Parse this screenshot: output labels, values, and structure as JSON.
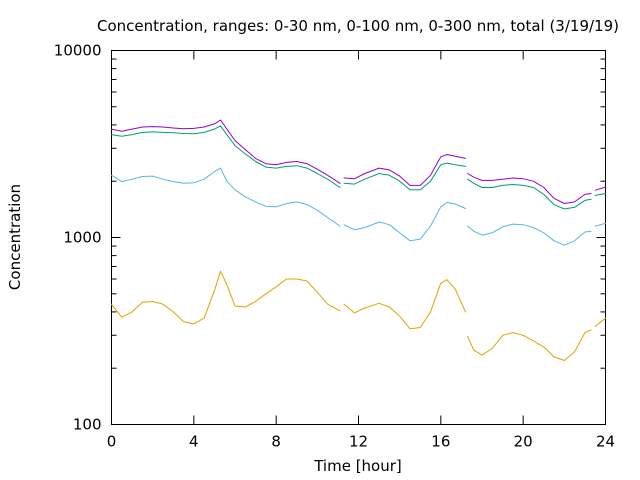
{
  "chart_data": {
    "type": "line",
    "title": "Concentration, ranges: 0-30 nm, 0-100 nm, 0-300 nm, total (3/19/19)",
    "xlabel": "Time [hour]",
    "ylabel": "Concentration",
    "xlim": [
      0,
      24
    ],
    "ylim": [
      100,
      10000
    ],
    "yscale": "log",
    "grid": false,
    "legend": "none",
    "x_ticks": [
      {
        "value": 0,
        "label": "0"
      },
      {
        "value": 4,
        "label": "4"
      },
      {
        "value": 8,
        "label": "8"
      },
      {
        "value": 12,
        "label": "12"
      },
      {
        "value": 16,
        "label": "16"
      },
      {
        "value": 20,
        "label": "20"
      },
      {
        "value": 24,
        "label": "24"
      }
    ],
    "y_ticks": [
      {
        "value": 100,
        "label": "100"
      },
      {
        "value": 1000,
        "label": "1000"
      },
      {
        "value": 10000,
        "label": "10000"
      }
    ],
    "series": [
      {
        "color": "#e69f00",
        "segments": [
          {
            "x": [
              0,
              0.5,
              1,
              1.5,
              2,
              2.5,
              3,
              3.5,
              4,
              4.5,
              5.0,
              5.3,
              5.6,
              6,
              6.5,
              7,
              7.5,
              8,
              8.5,
              9,
              9.5,
              10,
              10.5,
              11.1
            ],
            "y": [
              440,
              375,
              400,
              450,
              455,
              440,
              400,
              355,
              345,
              370,
              520,
              660,
              560,
              430,
              425,
              455,
              500,
              545,
              600,
              600,
              585,
              510,
              440,
              405
            ]
          },
          {
            "x": [
              11.3,
              11.8,
              12.3,
              13,
              13.5,
              14,
              14.5,
              15,
              15.5,
              16,
              16.3,
              16.7,
              17.2
            ],
            "y": [
              440,
              395,
              420,
              445,
              425,
              380,
              325,
              330,
              400,
              570,
              595,
              530,
              400
            ]
          },
          {
            "x": [
              17.3,
              17.6,
              18,
              18.5,
              19,
              19.5,
              20,
              20.5,
              21,
              21.5,
              22,
              22.5,
              23,
              23.3
            ],
            "y": [
              295,
              250,
              235,
              255,
              300,
              310,
              300,
              280,
              260,
              230,
              220,
              245,
              310,
              320
            ]
          },
          {
            "x": [
              23.5,
              24
            ],
            "y": [
              335,
              370
            ]
          }
        ]
      },
      {
        "color": "#56b4e9",
        "segments": [
          {
            "x": [
              0,
              0.5,
              1,
              1.5,
              2,
              2.5,
              3,
              3.5,
              4,
              4.5,
              5.0,
              5.3,
              5.6,
              6,
              6.5,
              7,
              7.5,
              8,
              8.5,
              9,
              9.5,
              10,
              10.5,
              11.1
            ],
            "y": [
              2150,
              1990,
              2050,
              2120,
              2130,
              2050,
              1990,
              1950,
              1960,
              2050,
              2250,
              2350,
              2000,
              1800,
              1650,
              1550,
              1470,
              1460,
              1520,
              1550,
              1500,
              1400,
              1280,
              1150
            ]
          },
          {
            "x": [
              11.3,
              11.8,
              12.3,
              13,
              13.5,
              14,
              14.5,
              15,
              15.5,
              16,
              16.3,
              16.7,
              17.2
            ],
            "y": [
              1170,
              1100,
              1130,
              1210,
              1170,
              1060,
              960,
              980,
              1150,
              1460,
              1540,
              1510,
              1430
            ]
          },
          {
            "x": [
              17.3,
              17.6,
              18,
              18.5,
              19,
              19.5,
              20,
              20.5,
              21,
              21.5,
              22,
              22.5,
              23,
              23.3
            ],
            "y": [
              1150,
              1080,
              1030,
              1060,
              1140,
              1180,
              1170,
              1130,
              1060,
              960,
              910,
              960,
              1070,
              1080
            ]
          },
          {
            "x": [
              23.5,
              24
            ],
            "y": [
              1150,
              1190
            ]
          }
        ]
      },
      {
        "color": "#009e73",
        "segments": [
          {
            "x": [
              0,
              0.5,
              1,
              1.5,
              2,
              2.5,
              3,
              3.5,
              4,
              4.5,
              5.0,
              5.3,
              5.6,
              6,
              6.5,
              7,
              7.5,
              8,
              8.5,
              9,
              9.5,
              10,
              10.5,
              11.1
            ],
            "y": [
              3550,
              3480,
              3550,
              3650,
              3670,
              3650,
              3630,
              3600,
              3590,
              3650,
              3800,
              3950,
              3550,
              3100,
              2800,
              2550,
              2380,
              2350,
              2400,
              2420,
              2350,
              2200,
              2050,
              1850
            ]
          },
          {
            "x": [
              11.3,
              11.8,
              12.3,
              13,
              13.5,
              14,
              14.5,
              15,
              15.5,
              16,
              16.3,
              16.7,
              17.2
            ],
            "y": [
              1950,
              1930,
              2050,
              2200,
              2150,
              2000,
              1800,
              1800,
              2000,
              2450,
              2500,
              2450,
              2400
            ]
          },
          {
            "x": [
              17.3,
              17.6,
              18,
              18.5,
              19,
              19.5,
              20,
              20.5,
              21,
              21.5,
              22,
              22.5,
              23,
              23.3
            ],
            "y": [
              2050,
              1950,
              1850,
              1850,
              1900,
              1920,
              1900,
              1850,
              1700,
              1500,
              1420,
              1450,
              1580,
              1600
            ]
          },
          {
            "x": [
              23.5,
              24
            ],
            "y": [
              1680,
              1720
            ]
          }
        ]
      },
      {
        "color": "#9400d3",
        "segments": [
          {
            "x": [
              0,
              0.5,
              1,
              1.5,
              2,
              2.5,
              3,
              3.5,
              4,
              4.5,
              5.0,
              5.3,
              5.6,
              6,
              6.5,
              7,
              7.5,
              8,
              8.5,
              9,
              9.5,
              10,
              10.5,
              11.1
            ],
            "y": [
              3800,
              3700,
              3800,
              3900,
              3920,
              3900,
              3850,
              3820,
              3830,
              3900,
              4050,
              4250,
              3800,
              3300,
              2950,
              2650,
              2480,
              2450,
              2520,
              2550,
              2480,
              2320,
              2150,
              1950
            ]
          },
          {
            "x": [
              11.3,
              11.8,
              12.3,
              13,
              13.5,
              14,
              14.5,
              15,
              15.5,
              16,
              16.3,
              16.7,
              17.2
            ],
            "y": [
              2080,
              2060,
              2200,
              2350,
              2300,
              2130,
              1900,
              1900,
              2150,
              2700,
              2780,
              2720,
              2650
            ]
          },
          {
            "x": [
              17.3,
              17.6,
              18,
              18.5,
              19,
              19.5,
              20,
              20.5,
              21,
              21.5,
              22,
              22.5,
              23,
              23.3
            ],
            "y": [
              2200,
              2100,
              2020,
              2020,
              2050,
              2080,
              2060,
              2000,
              1850,
              1620,
              1520,
              1550,
              1700,
              1720
            ]
          },
          {
            "x": [
              23.5,
              24
            ],
            "y": [
              1790,
              1860
            ]
          }
        ]
      }
    ]
  }
}
